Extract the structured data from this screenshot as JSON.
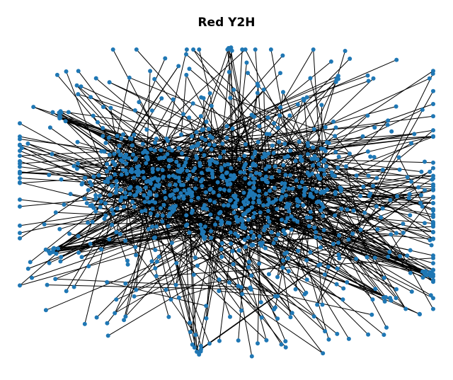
{
  "figure": {
    "title": "Red Y2H"
  },
  "graph": {
    "type": "network",
    "layout": "force-directed",
    "node_color": "#1f77b4",
    "edge_color": "#000000"
  }
}
